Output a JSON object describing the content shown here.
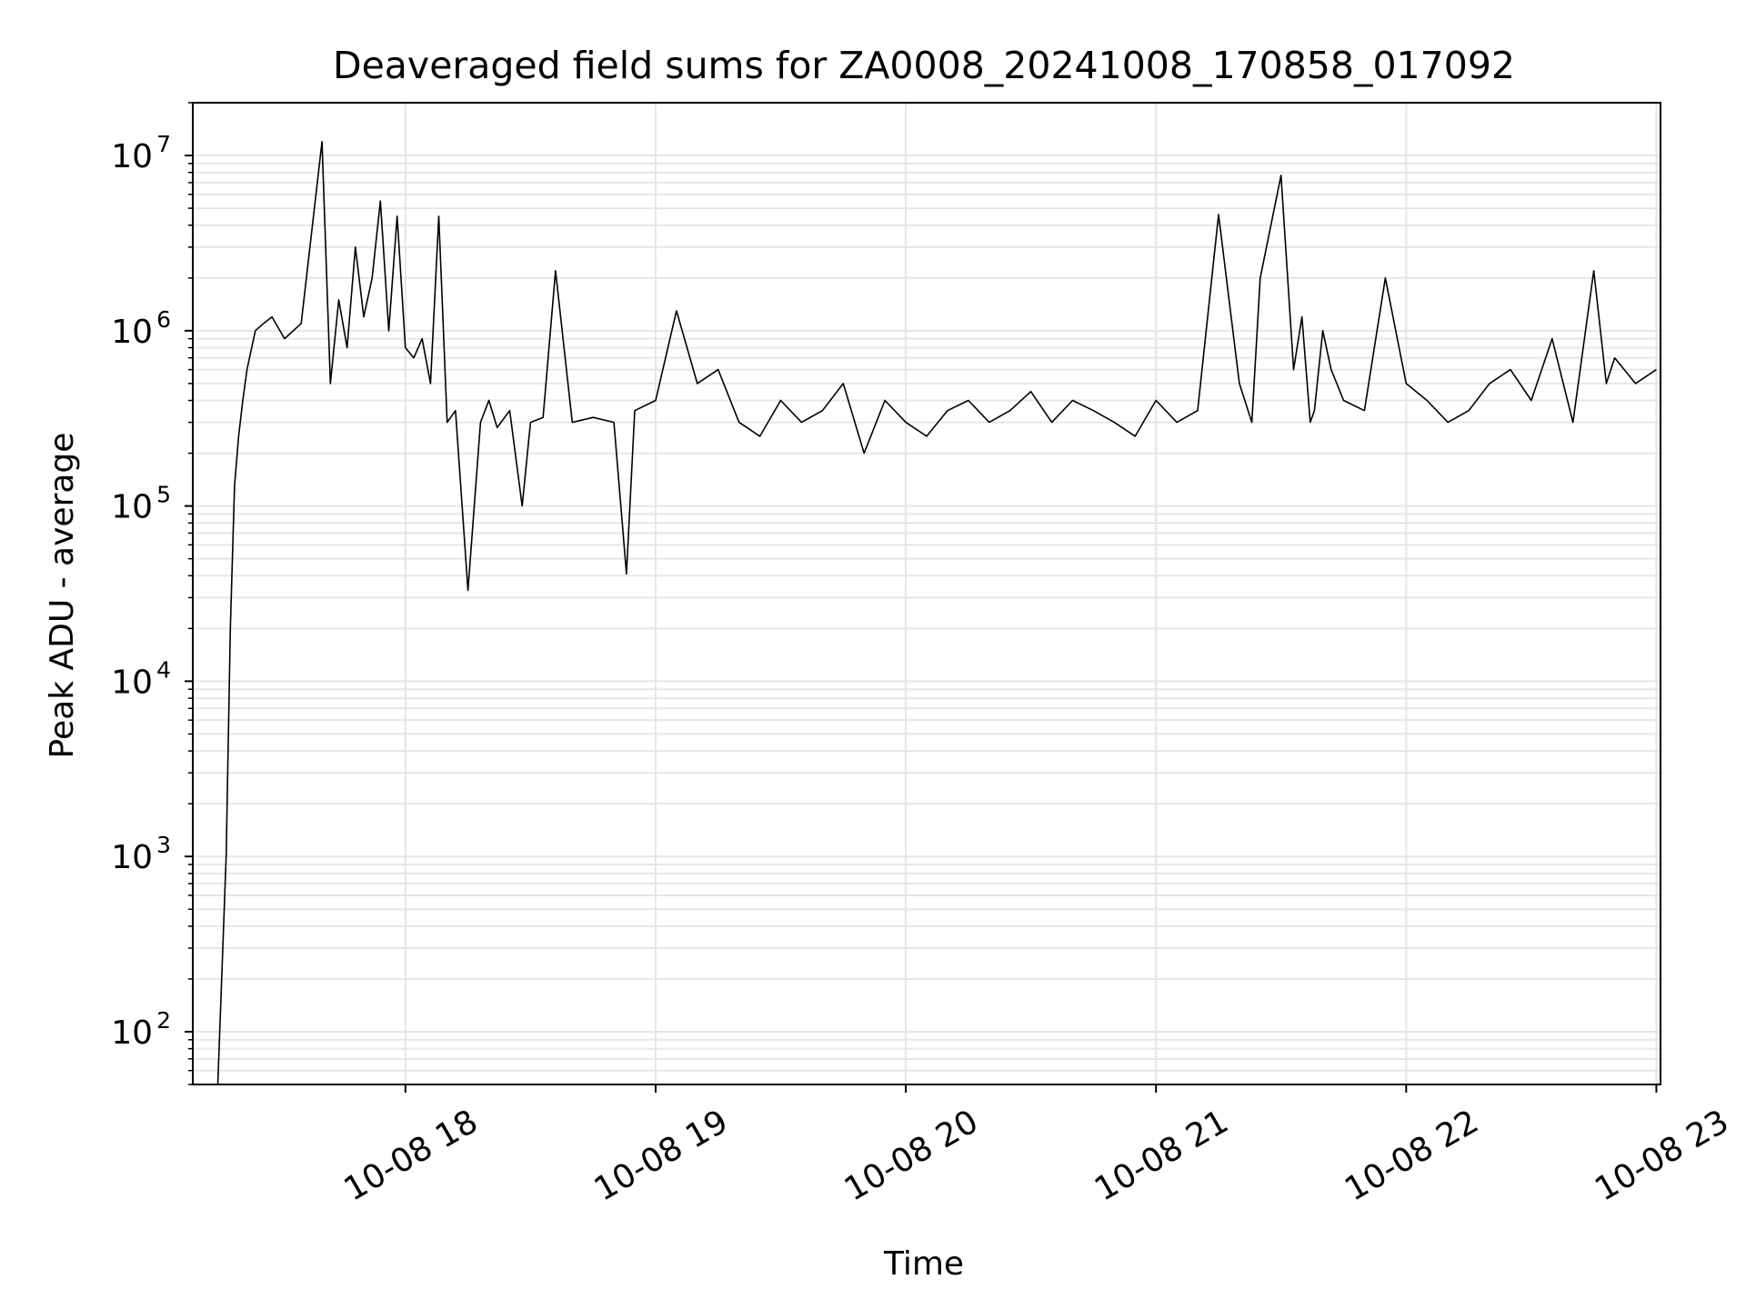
{
  "chart_data": {
    "type": "line",
    "title": "Deaveraged field sums for ZA0008_20241008_170858_017092",
    "xlabel": "Time",
    "ylabel": "Peak ADU - average",
    "yscale": "log",
    "xlim": [
      "2024-10-08 17:09",
      "2024-10-08 23:01"
    ],
    "ylim": [
      50,
      20000000
    ],
    "grid": true,
    "x_ticks": [
      "10-08 18",
      "10-08 19",
      "10-08 20",
      "10-08 21",
      "10-08 22",
      "10-08 23"
    ],
    "x_tick_hours": [
      18,
      19,
      20,
      21,
      22,
      23
    ],
    "y_ticks": [
      {
        "value": 100,
        "base": "10",
        "exp": "2"
      },
      {
        "value": 1000,
        "base": "10",
        "exp": "3"
      },
      {
        "value": 10000,
        "base": "10",
        "exp": "4"
      },
      {
        "value": 100000,
        "base": "10",
        "exp": "5"
      },
      {
        "value": 1000000,
        "base": "10",
        "exp": "6"
      },
      {
        "value": 10000000,
        "base": "10",
        "exp": "7"
      }
    ],
    "line_color": "#000000",
    "series": [
      {
        "x": [
          "17:15",
          "17:17",
          "17:18",
          "17:19",
          "17:20",
          "17:21",
          "17:22",
          "17:24",
          "17:26",
          "17:28",
          "17:31",
          "17:35",
          "17:40",
          "17:42",
          "17:44",
          "17:46",
          "17:48",
          "17:50",
          "17:52",
          "17:54",
          "17:56",
          "17:58",
          "18:00",
          "18:02",
          "18:04",
          "18:06",
          "18:08",
          "18:10",
          "18:12",
          "18:15",
          "18:18",
          "18:20",
          "18:22",
          "18:25",
          "18:28",
          "18:30",
          "18:33",
          "18:36",
          "18:40",
          "18:45",
          "18:50",
          "18:53",
          "18:55",
          "19:00",
          "19:05",
          "19:10",
          "19:15",
          "19:20",
          "19:25",
          "19:30",
          "19:35",
          "19:40",
          "19:45",
          "19:50",
          "19:55",
          "20:00",
          "20:05",
          "20:10",
          "20:15",
          "20:20",
          "20:25",
          "20:30",
          "20:35",
          "20:40",
          "20:45",
          "20:50",
          "20:55",
          "21:00",
          "21:05",
          "21:10",
          "21:15",
          "21:20",
          "21:23",
          "21:25",
          "21:30",
          "21:33",
          "21:35",
          "21:37",
          "21:38",
          "21:40",
          "21:42",
          "21:45",
          "21:50",
          "21:55",
          "22:00",
          "22:05",
          "22:10",
          "22:15",
          "22:20",
          "22:25",
          "22:30",
          "22:35",
          "22:40",
          "22:45",
          "22:48",
          "22:50",
          "22:55",
          "23:00"
        ],
        "y": [
          50,
          1000,
          20000,
          130000,
          250000,
          400000,
          600000,
          1000000,
          1100000,
          1200000,
          900000,
          1100000,
          12000000,
          500000,
          1500000,
          800000,
          3000000,
          1200000,
          2000000,
          5500000,
          1000000,
          4500000,
          800000,
          700000,
          900000,
          500000,
          4500000,
          300000,
          350000,
          33000,
          300000,
          400000,
          280000,
          350000,
          100000,
          300000,
          320000,
          2200000,
          300000,
          320000,
          300000,
          41000,
          350000,
          400000,
          1300000,
          500000,
          600000,
          300000,
          250000,
          400000,
          300000,
          350000,
          500000,
          200000,
          400000,
          300000,
          250000,
          350000,
          400000,
          300000,
          350000,
          450000,
          300000,
          400000,
          350000,
          300000,
          250000,
          400000,
          300000,
          350000,
          4600000,
          500000,
          300000,
          2000000,
          7700000,
          600000,
          1200000,
          300000,
          350000,
          1000000,
          600000,
          400000,
          350000,
          2000000,
          500000,
          400000,
          300000,
          350000,
          500000,
          600000,
          400000,
          900000,
          300000,
          2200000,
          500000,
          700000,
          500000,
          600000
        ]
      }
    ]
  }
}
